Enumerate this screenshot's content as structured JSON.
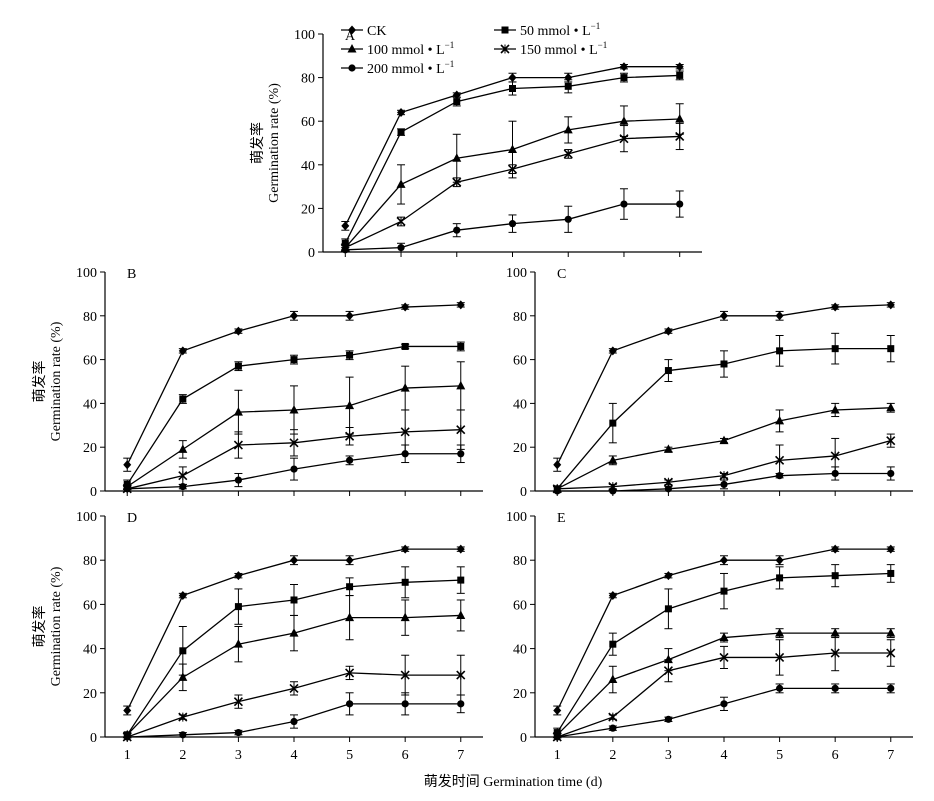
{
  "figure": {
    "xlabel": "萌发时间 Germination time (d)"
  },
  "chart_data": [
    {
      "panel": "A",
      "type": "line",
      "ylabel_cn": "萌发率",
      "ylabel_en": "Germination rate (%)",
      "x": [
        1,
        2,
        3,
        4,
        5,
        6,
        7
      ],
      "xlim": [
        0.6,
        7.4
      ],
      "ylim": [
        0,
        100
      ],
      "yticks": [
        0,
        20,
        40,
        60,
        80,
        100
      ],
      "show_xticks": false,
      "legend": [
        {
          "series": 0,
          "label": "CK",
          "sup": ""
        },
        {
          "series": 1,
          "label": "50 mmol • L",
          "sup": "−1"
        },
        {
          "series": 2,
          "label": "100 mmol • L",
          "sup": "−1"
        },
        {
          "series": 3,
          "label": "150 mmol • L",
          "sup": "−1"
        },
        {
          "series": 4,
          "label": "200 mmol • L",
          "sup": "−1"
        }
      ],
      "series": [
        {
          "name": "CK",
          "marker": "diamond",
          "values": [
            12,
            64,
            72,
            80,
            80,
            85,
            85
          ],
          "errors": [
            2,
            1,
            1,
            2,
            2,
            1,
            1
          ]
        },
        {
          "name": "50 mmol • L−1",
          "marker": "square",
          "values": [
            4,
            55,
            69,
            75,
            76,
            80,
            81
          ],
          "errors": [
            2,
            1.5,
            2,
            3,
            3,
            2,
            2
          ]
        },
        {
          "name": "100 mmol • L−1",
          "marker": "triangle",
          "values": [
            2,
            31,
            43,
            47,
            56,
            60,
            61
          ],
          "errors": [
            1,
            9,
            11,
            13,
            6,
            7,
            7
          ]
        },
        {
          "name": "150 mmol • L−1",
          "marker": "x",
          "values": [
            2,
            14,
            32,
            38,
            45,
            52,
            53
          ],
          "errors": [
            1,
            2,
            2,
            2,
            2,
            6,
            6
          ]
        },
        {
          "name": "200 mmol • L−1",
          "marker": "circle",
          "values": [
            1,
            2,
            10,
            13,
            15,
            22,
            22
          ],
          "errors": [
            1,
            2,
            3,
            4,
            6,
            7,
            6
          ]
        }
      ]
    },
    {
      "panel": "B",
      "type": "line",
      "ylabel_cn": "萌发率",
      "ylabel_en": "Germination rate (%)",
      "x": [
        1,
        2,
        3,
        4,
        5,
        6,
        7
      ],
      "xlim": [
        0.6,
        7.4
      ],
      "ylim": [
        0,
        100
      ],
      "yticks": [
        0,
        20,
        40,
        60,
        80,
        100
      ],
      "show_xticks": false,
      "series": [
        {
          "name": "CK",
          "marker": "diamond",
          "values": [
            12,
            64,
            73,
            80,
            80,
            84,
            85
          ],
          "errors": [
            3,
            1,
            1,
            2,
            2,
            1,
            1
          ]
        },
        {
          "name": "50 mmol • L−1",
          "marker": "square",
          "values": [
            3,
            42,
            57,
            60,
            62,
            66,
            66
          ],
          "errors": [
            2,
            2,
            2,
            2,
            2,
            1,
            2
          ]
        },
        {
          "name": "100 mmol • L−1",
          "marker": "triangle",
          "values": [
            2,
            19,
            36,
            37,
            39,
            47,
            48
          ],
          "errors": [
            1,
            4,
            10,
            11,
            13,
            10,
            11
          ]
        },
        {
          "name": "150 mmol • L−1",
          "marker": "x",
          "values": [
            1,
            7,
            21,
            22,
            25,
            27,
            28
          ],
          "errors": [
            1,
            4,
            6,
            6,
            4,
            10,
            9
          ]
        },
        {
          "name": "200 mmol • L−1",
          "marker": "circle",
          "values": [
            1,
            2,
            5,
            10,
            14,
            17,
            17
          ],
          "errors": [
            1,
            1,
            3,
            5,
            2,
            4,
            4
          ]
        }
      ]
    },
    {
      "panel": "C",
      "type": "line",
      "ylabel_cn": "",
      "ylabel_en": "",
      "x": [
        1,
        2,
        3,
        4,
        5,
        6,
        7
      ],
      "xlim": [
        0.6,
        7.4
      ],
      "ylim": [
        0,
        100
      ],
      "yticks": [
        0,
        20,
        40,
        60,
        80,
        100
      ],
      "show_xticks": false,
      "series": [
        {
          "name": "CK",
          "marker": "diamond",
          "values": [
            12,
            64,
            73,
            80,
            80,
            84,
            85
          ],
          "errors": [
            3,
            1,
            1,
            2,
            2,
            1,
            1
          ]
        },
        {
          "name": "50 mmol • L−1",
          "marker": "square",
          "values": [
            1,
            31,
            55,
            58,
            64,
            65,
            65
          ],
          "errors": [
            1,
            9,
            5,
            6,
            7,
            7,
            6
          ]
        },
        {
          "name": "100 mmol • L−1",
          "marker": "triangle",
          "values": [
            1,
            14,
            19,
            23,
            32,
            37,
            38
          ],
          "errors": [
            1,
            2,
            1,
            1,
            5,
            3,
            2
          ]
        },
        {
          "name": "150 mmol • L−1",
          "marker": "x",
          "values": [
            1,
            2,
            4,
            7,
            14,
            16,
            23
          ],
          "errors": [
            1,
            1,
            1,
            1,
            7,
            8,
            3
          ]
        },
        {
          "name": "200 mmol • L−1",
          "marker": "circle",
          "values": [
            0,
            0,
            1,
            3,
            7,
            8,
            8
          ],
          "errors": [
            0,
            0,
            1,
            2,
            1,
            3,
            3
          ]
        }
      ]
    },
    {
      "panel": "D",
      "type": "line",
      "ylabel_cn": "萌发率",
      "ylabel_en": "Germination rate (%)",
      "x": [
        1,
        2,
        3,
        4,
        5,
        6,
        7
      ],
      "xlim": [
        0.6,
        7.4
      ],
      "ylim": [
        0,
        100
      ],
      "yticks": [
        0,
        20,
        40,
        60,
        80,
        100
      ],
      "xticks": [
        1,
        2,
        3,
        4,
        5,
        6,
        7
      ],
      "show_xticks": true,
      "series": [
        {
          "name": "CK",
          "marker": "diamond",
          "values": [
            12,
            64,
            73,
            80,
            80,
            85,
            85
          ],
          "errors": [
            2,
            1,
            1,
            2,
            2,
            1,
            1
          ]
        },
        {
          "name": "50 mmol • L−1",
          "marker": "square",
          "values": [
            1,
            39,
            59,
            62,
            68,
            70,
            71
          ],
          "errors": [
            1,
            11,
            8,
            7,
            4,
            7,
            6
          ]
        },
        {
          "name": "100 mmol • L−1",
          "marker": "triangle",
          "values": [
            1,
            27,
            42,
            47,
            54,
            54,
            55
          ],
          "errors": [
            1,
            6,
            8,
            8,
            10,
            8,
            7
          ]
        },
        {
          "name": "150 mmol • L−1",
          "marker": "x",
          "values": [
            0,
            9,
            16,
            22,
            29,
            28,
            28
          ],
          "errors": [
            0,
            1,
            3,
            3,
            3,
            9,
            9
          ]
        },
        {
          "name": "200 mmol • L−1",
          "marker": "circle",
          "values": [
            0,
            1,
            2,
            7,
            15,
            15,
            15
          ],
          "errors": [
            0,
            1,
            1,
            3,
            5,
            5,
            4
          ]
        }
      ]
    },
    {
      "panel": "E",
      "type": "line",
      "ylabel_cn": "",
      "ylabel_en": "",
      "x": [
        1,
        2,
        3,
        4,
        5,
        6,
        7
      ],
      "xlim": [
        0.6,
        7.4
      ],
      "ylim": [
        0,
        100
      ],
      "yticks": [
        0,
        20,
        40,
        60,
        80,
        100
      ],
      "xticks": [
        1,
        2,
        3,
        4,
        5,
        6,
        7
      ],
      "show_xticks": true,
      "series": [
        {
          "name": "CK",
          "marker": "diamond",
          "values": [
            12,
            64,
            73,
            80,
            80,
            85,
            85
          ],
          "errors": [
            2,
            1,
            1,
            2,
            2,
            1,
            1
          ]
        },
        {
          "name": "50 mmol • L−1",
          "marker": "square",
          "values": [
            2,
            42,
            58,
            66,
            72,
            73,
            74
          ],
          "errors": [
            2,
            5,
            9,
            8,
            5,
            5,
            4
          ]
        },
        {
          "name": "100 mmol • L−1",
          "marker": "triangle",
          "values": [
            1,
            26,
            35,
            45,
            47,
            47,
            47
          ],
          "errors": [
            1,
            6,
            5,
            2,
            2,
            2,
            2
          ]
        },
        {
          "name": "150 mmol • L−1",
          "marker": "x",
          "values": [
            0,
            9,
            30,
            36,
            36,
            38,
            38
          ],
          "errors": [
            0,
            1,
            5,
            5,
            8,
            8,
            6
          ]
        },
        {
          "name": "200 mmol • L−1",
          "marker": "circle",
          "values": [
            0,
            4,
            8,
            15,
            22,
            22,
            22
          ],
          "errors": [
            0,
            1,
            1,
            3,
            2,
            2,
            2
          ]
        }
      ]
    }
  ]
}
